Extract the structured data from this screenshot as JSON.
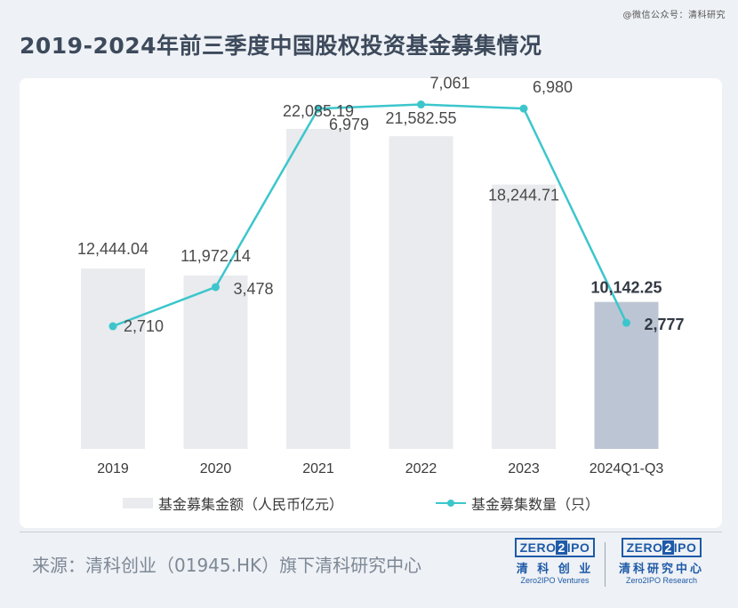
{
  "watermark": "@微信公众号：清科研究",
  "title": "2019-2024年前三季度中国股权投资基金募集情况",
  "chart_data": {
    "type": "bar",
    "categories": [
      "2019",
      "2020",
      "2021",
      "2022",
      "2023",
      "2024Q1-Q3"
    ],
    "series": [
      {
        "name": "基金募集金额（人民币亿元）",
        "type": "bar",
        "values": [
          12444.04,
          11972.14,
          22085.19,
          21582.55,
          18244.71,
          10142.25
        ],
        "labels": [
          "12,444.04",
          "11,972.14",
          "22,085.19",
          "21,582.55",
          "18,244.71",
          "10,142.25"
        ]
      },
      {
        "name": "基金募集数量（只）",
        "type": "line",
        "values": [
          2710,
          3478,
          6979,
          7061,
          6980,
          2777
        ],
        "labels": [
          "2,710",
          "3,478",
          "6,979",
          "7,061",
          "6,980",
          "2,777"
        ]
      }
    ],
    "highlight_index": 5,
    "colors": {
      "bar": "#e9ebee",
      "bar_highlight": "#bcc5d3",
      "line": "#3cc6cc"
    },
    "grid": false,
    "legend_position": "bottom"
  },
  "source": "来源：清科创业（01945.HK）旗下清科研究中心",
  "logos": [
    {
      "mark_left": "ZERO",
      "mark_mid": "2",
      "mark_right": "IPO",
      "cn": "清 科 创 业",
      "en": "Zero2IPO Ventures"
    },
    {
      "mark_left": "ZERO",
      "mark_mid": "2",
      "mark_right": "IPO",
      "cn": "清科研究中心",
      "en": "Zero2IPO Research"
    }
  ]
}
